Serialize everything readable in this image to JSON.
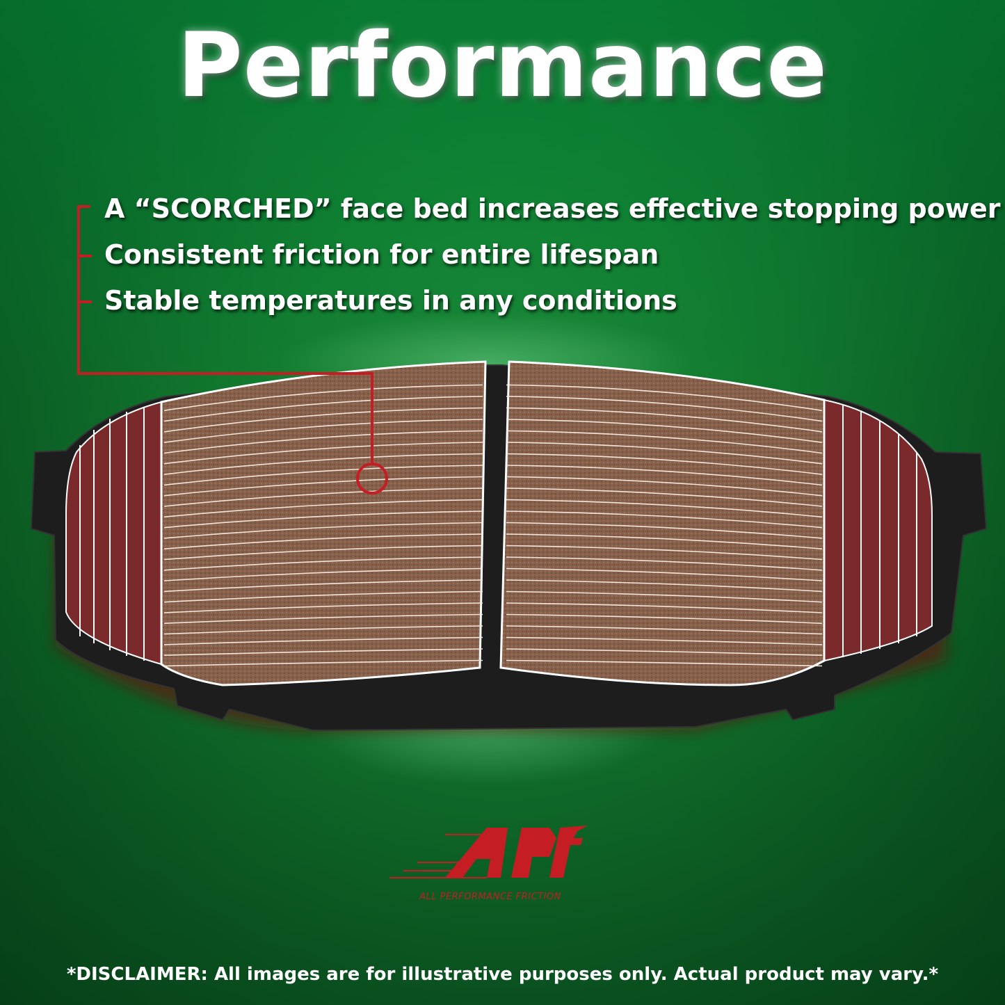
{
  "title": "Performance",
  "features": [
    "A “SCORCHED” face bed increases effective stopping power",
    "Consistent friction for entire lifespan",
    "Stable temperatures in any conditions"
  ],
  "logo": {
    "mark": "APF",
    "tagline": "ALL PERFORMANCE FRICTION"
  },
  "disclaimer": "*DISCLAIMER: All images are for illustrative purposes only. Actual product may vary.*",
  "colors": {
    "background": "#127a2f",
    "accent_red": "#c41e24",
    "pad_copper": "#8a6248",
    "text": "#ffffff"
  }
}
